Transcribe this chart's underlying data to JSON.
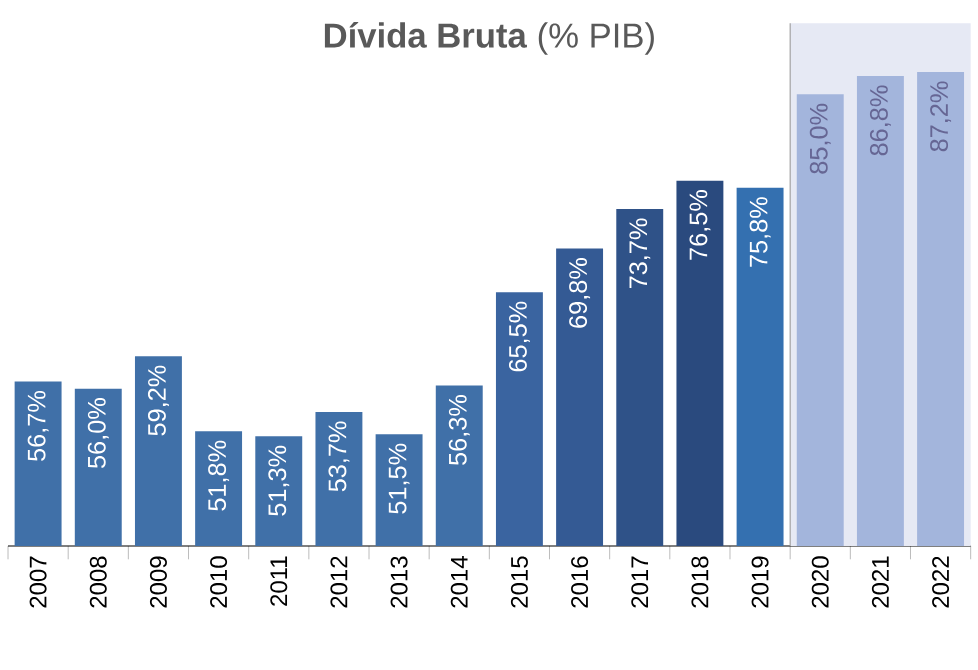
{
  "chart_data": {
    "type": "bar",
    "title": "**Dívida Bruta** (% PIB)",
    "categories": [
      "2007",
      "2008",
      "2009",
      "2010",
      "2011",
      "2012",
      "2013",
      "2014",
      "2015",
      "2016",
      "2017",
      "2018",
      "2019",
      "2020",
      "2021",
      "2022"
    ],
    "values": [
      56.7,
      56.0,
      59.2,
      51.8,
      51.3,
      53.7,
      51.5,
      56.3,
      65.5,
      69.8,
      73.7,
      76.5,
      75.8,
      85.0,
      86.8,
      87.2
    ],
    "value_labels": [
      "56,7%",
      "56,0%",
      "59,2%",
      "51,8%",
      "51,3%",
      "53,7%",
      "51,5%",
      "56,3%",
      "65,5%",
      "69,8%",
      "73,7%",
      "76,5%",
      "75,8%",
      "85,0%",
      "86,8%",
      "87,2%"
    ],
    "colors": [
      "#4070a8",
      "#4070a8",
      "#4070a8",
      "#4070a8",
      "#4070a8",
      "#4070a8",
      "#4070a8",
      "#4070a8",
      "#3a64a0",
      "#345a94",
      "#2f5288",
      "#2a4a7e",
      "#3470b0",
      "#a3b5dc",
      "#a3b5dc",
      "#a3b5dc"
    ],
    "ylim": [
      40.5,
      92
    ],
    "bands": [
      {
        "axis": "x",
        "from": "2020",
        "to": "2022",
        "color": "#e6e9f4"
      }
    ]
  }
}
